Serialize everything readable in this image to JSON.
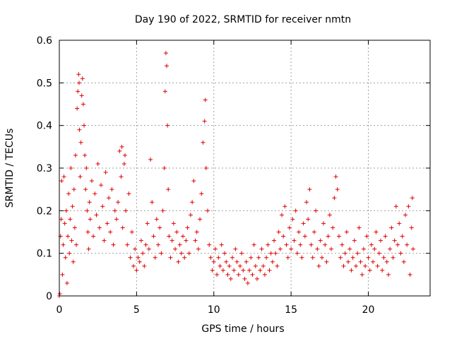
{
  "chart_data": {
    "type": "scatter",
    "title": "Day 190 of 2022, SRMTID for receiver nmtn",
    "xlabel": "GPS time / hours",
    "ylabel": "SRMTID / TECUs",
    "xlim": [
      0,
      24
    ],
    "ylim": [
      0,
      0.6
    ],
    "xticks": [
      0,
      5,
      10,
      15,
      20
    ],
    "xtick_labels": [
      "0",
      "5",
      "10",
      "15",
      "20"
    ],
    "yticks": [
      0,
      0.1,
      0.2,
      0.3,
      0.4,
      0.5,
      0.6
    ],
    "ytick_labels": [
      "0",
      "0.1",
      "0.2",
      "0.3",
      "0.4",
      "0.5",
      "0.6"
    ],
    "grid": true,
    "marker": "+",
    "marker_color": "#e00000",
    "series": [
      {
        "name": "SRMTID",
        "points": [
          [
            0.0,
            0.0
          ],
          [
            0.03,
            0.005
          ],
          [
            0.08,
            0.14
          ],
          [
            0.12,
            0.18
          ],
          [
            0.15,
            0.27
          ],
          [
            0.2,
            0.05
          ],
          [
            0.25,
            0.12
          ],
          [
            0.3,
            0.28
          ],
          [
            0.35,
            0.17
          ],
          [
            0.4,
            0.09
          ],
          [
            0.45,
            0.2
          ],
          [
            0.5,
            0.03
          ],
          [
            0.55,
            0.14
          ],
          [
            0.6,
            0.24
          ],
          [
            0.65,
            0.1
          ],
          [
            0.7,
            0.18
          ],
          [
            0.75,
            0.3
          ],
          [
            0.8,
            0.13
          ],
          [
            0.85,
            0.21
          ],
          [
            0.9,
            0.08
          ],
          [
            0.95,
            0.25
          ],
          [
            1.0,
            0.16
          ],
          [
            1.05,
            0.33
          ],
          [
            1.1,
            0.12
          ],
          [
            1.15,
            0.44
          ],
          [
            1.2,
            0.48
          ],
          [
            1.25,
            0.52
          ],
          [
            1.28,
            0.5
          ],
          [
            1.3,
            0.39
          ],
          [
            1.35,
            0.28
          ],
          [
            1.4,
            0.36
          ],
          [
            1.45,
            0.47
          ],
          [
            1.5,
            0.51
          ],
          [
            1.55,
            0.45
          ],
          [
            1.6,
            0.4
          ],
          [
            1.65,
            0.33
          ],
          [
            1.7,
            0.25
          ],
          [
            1.75,
            0.3
          ],
          [
            1.8,
            0.2
          ],
          [
            1.85,
            0.15
          ],
          [
            1.9,
            0.11
          ],
          [
            1.95,
            0.22
          ],
          [
            2.0,
            0.18
          ],
          [
            2.1,
            0.27
          ],
          [
            2.2,
            0.14
          ],
          [
            2.3,
            0.24
          ],
          [
            2.4,
            0.19
          ],
          [
            2.5,
            0.31
          ],
          [
            2.6,
            0.16
          ],
          [
            2.7,
            0.26
          ],
          [
            2.8,
            0.21
          ],
          [
            2.9,
            0.13
          ],
          [
            3.0,
            0.29
          ],
          [
            3.1,
            0.17
          ],
          [
            3.2,
            0.23
          ],
          [
            3.3,
            0.15
          ],
          [
            3.4,
            0.25
          ],
          [
            3.5,
            0.12
          ],
          [
            3.6,
            0.2
          ],
          [
            3.7,
            0.18
          ],
          [
            3.8,
            0.22
          ],
          [
            3.9,
            0.34
          ],
          [
            4.0,
            0.28
          ],
          [
            4.05,
            0.35
          ],
          [
            4.1,
            0.16
          ],
          [
            4.2,
            0.31
          ],
          [
            4.25,
            0.33
          ],
          [
            4.3,
            0.2
          ],
          [
            4.4,
            0.12
          ],
          [
            4.5,
            0.24
          ],
          [
            4.6,
            0.09
          ],
          [
            4.7,
            0.15
          ],
          [
            4.8,
            0.07
          ],
          [
            4.9,
            0.11
          ],
          [
            5.0,
            0.06
          ],
          [
            5.1,
            0.09
          ],
          [
            5.2,
            0.08
          ],
          [
            5.3,
            0.13
          ],
          [
            5.4,
            0.1
          ],
          [
            5.5,
            0.07
          ],
          [
            5.6,
            0.12
          ],
          [
            5.7,
            0.17
          ],
          [
            5.8,
            0.11
          ],
          [
            5.9,
            0.32
          ],
          [
            6.0,
            0.22
          ],
          [
            6.1,
            0.14
          ],
          [
            6.2,
            0.09
          ],
          [
            6.3,
            0.18
          ],
          [
            6.4,
            0.12
          ],
          [
            6.5,
            0.16
          ],
          [
            6.6,
            0.1
          ],
          [
            6.7,
            0.2
          ],
          [
            6.8,
            0.3
          ],
          [
            6.85,
            0.48
          ],
          [
            6.9,
            0.57
          ],
          [
            6.95,
            0.54
          ],
          [
            7.0,
            0.4
          ],
          [
            7.05,
            0.25
          ],
          [
            7.1,
            0.14
          ],
          [
            7.2,
            0.09
          ],
          [
            7.3,
            0.13
          ],
          [
            7.4,
            0.17
          ],
          [
            7.5,
            0.11
          ],
          [
            7.6,
            0.15
          ],
          [
            7.7,
            0.08
          ],
          [
            7.8,
            0.12
          ],
          [
            7.9,
            0.1
          ],
          [
            8.0,
            0.14
          ],
          [
            8.1,
            0.09
          ],
          [
            8.2,
            0.13
          ],
          [
            8.3,
            0.16
          ],
          [
            8.4,
            0.1
          ],
          [
            8.5,
            0.19
          ],
          [
            8.6,
            0.22
          ],
          [
            8.7,
            0.27
          ],
          [
            8.8,
            0.13
          ],
          [
            8.9,
            0.15
          ],
          [
            9.0,
            0.11
          ],
          [
            9.1,
            0.18
          ],
          [
            9.2,
            0.24
          ],
          [
            9.3,
            0.36
          ],
          [
            9.4,
            0.41
          ],
          [
            9.45,
            0.46
          ],
          [
            9.5,
            0.3
          ],
          [
            9.6,
            0.2
          ],
          [
            9.7,
            0.12
          ],
          [
            9.8,
            0.09
          ],
          [
            9.9,
            0.06
          ],
          [
            10.0,
            0.08
          ],
          [
            10.1,
            0.11
          ],
          [
            10.2,
            0.05
          ],
          [
            10.3,
            0.09
          ],
          [
            10.4,
            0.07
          ],
          [
            10.5,
            0.12
          ],
          [
            10.6,
            0.06
          ],
          [
            10.7,
            0.1
          ],
          [
            10.8,
            0.08
          ],
          [
            10.9,
            0.05
          ],
          [
            11.0,
            0.07
          ],
          [
            11.1,
            0.04
          ],
          [
            11.2,
            0.09
          ],
          [
            11.3,
            0.06
          ],
          [
            11.4,
            0.11
          ],
          [
            11.5,
            0.08
          ],
          [
            11.6,
            0.05
          ],
          [
            11.7,
            0.07
          ],
          [
            11.8,
            0.1
          ],
          [
            11.9,
            0.06
          ],
          [
            12.0,
            0.04
          ],
          [
            12.1,
            0.08
          ],
          [
            12.2,
            0.03
          ],
          [
            12.3,
            0.06
          ],
          [
            12.4,
            0.09
          ],
          [
            12.5,
            0.05
          ],
          [
            12.6,
            0.12
          ],
          [
            12.7,
            0.07
          ],
          [
            12.8,
            0.04
          ],
          [
            12.9,
            0.09
          ],
          [
            13.0,
            0.06
          ],
          [
            13.1,
            0.11
          ],
          [
            13.2,
            0.07
          ],
          [
            13.3,
            0.05
          ],
          [
            13.4,
            0.09
          ],
          [
            13.5,
            0.12
          ],
          [
            13.6,
            0.06
          ],
          [
            13.7,
            0.1
          ],
          [
            13.8,
            0.08
          ],
          [
            13.9,
            0.13
          ],
          [
            14.0,
            0.1
          ],
          [
            14.1,
            0.07
          ],
          [
            14.2,
            0.15
          ],
          [
            14.3,
            0.11
          ],
          [
            14.4,
            0.19
          ],
          [
            14.5,
            0.14
          ],
          [
            14.6,
            0.21
          ],
          [
            14.7,
            0.12
          ],
          [
            14.8,
            0.09
          ],
          [
            14.9,
            0.16
          ],
          [
            15.0,
            0.11
          ],
          [
            15.1,
            0.18
          ],
          [
            15.2,
            0.13
          ],
          [
            15.3,
            0.2
          ],
          [
            15.4,
            0.1
          ],
          [
            15.5,
            0.15
          ],
          [
            15.6,
            0.12
          ],
          [
            15.7,
            0.09
          ],
          [
            15.8,
            0.17
          ],
          [
            15.9,
            0.14
          ],
          [
            16.0,
            0.22
          ],
          [
            16.1,
            0.18
          ],
          [
            16.2,
            0.25
          ],
          [
            16.3,
            0.12
          ],
          [
            16.4,
            0.09
          ],
          [
            16.5,
            0.15
          ],
          [
            16.6,
            0.2
          ],
          [
            16.7,
            0.11
          ],
          [
            16.8,
            0.07
          ],
          [
            16.9,
            0.13
          ],
          [
            17.0,
            0.09
          ],
          [
            17.1,
            0.17
          ],
          [
            17.2,
            0.12
          ],
          [
            17.3,
            0.08
          ],
          [
            17.4,
            0.14
          ],
          [
            17.5,
            0.19
          ],
          [
            17.6,
            0.11
          ],
          [
            17.7,
            0.16
          ],
          [
            17.8,
            0.23
          ],
          [
            17.9,
            0.28
          ],
          [
            18.0,
            0.25
          ],
          [
            18.1,
            0.14
          ],
          [
            18.2,
            0.09
          ],
          [
            18.3,
            0.12
          ],
          [
            18.4,
            0.07
          ],
          [
            18.5,
            0.1
          ],
          [
            18.6,
            0.15
          ],
          [
            18.7,
            0.08
          ],
          [
            18.8,
            0.11
          ],
          [
            18.9,
            0.06
          ],
          [
            19.0,
            0.09
          ],
          [
            19.1,
            0.13
          ],
          [
            19.2,
            0.07
          ],
          [
            19.3,
            0.1
          ],
          [
            19.4,
            0.16
          ],
          [
            19.5,
            0.08
          ],
          [
            19.6,
            0.05
          ],
          [
            19.7,
            0.11
          ],
          [
            19.8,
            0.07
          ],
          [
            19.9,
            0.14
          ],
          [
            20.0,
            0.09
          ],
          [
            20.1,
            0.06
          ],
          [
            20.2,
            0.12
          ],
          [
            20.3,
            0.08
          ],
          [
            20.4,
            0.11
          ],
          [
            20.5,
            0.15
          ],
          [
            20.6,
            0.07
          ],
          [
            20.7,
            0.1
          ],
          [
            20.8,
            0.13
          ],
          [
            20.9,
            0.06
          ],
          [
            21.0,
            0.09
          ],
          [
            21.1,
            0.14
          ],
          [
            21.2,
            0.08
          ],
          [
            21.3,
            0.05
          ],
          [
            21.4,
            0.11
          ],
          [
            21.5,
            0.16
          ],
          [
            21.6,
            0.09
          ],
          [
            21.7,
            0.13
          ],
          [
            21.8,
            0.21
          ],
          [
            21.9,
            0.12
          ],
          [
            22.0,
            0.17
          ],
          [
            22.1,
            0.1
          ],
          [
            22.2,
            0.14
          ],
          [
            22.3,
            0.08
          ],
          [
            22.4,
            0.19
          ],
          [
            22.5,
            0.12
          ],
          [
            22.6,
            0.21
          ],
          [
            22.7,
            0.05
          ],
          [
            22.8,
            0.16
          ],
          [
            22.85,
            0.23
          ],
          [
            22.9,
            0.11
          ]
        ]
      }
    ]
  }
}
